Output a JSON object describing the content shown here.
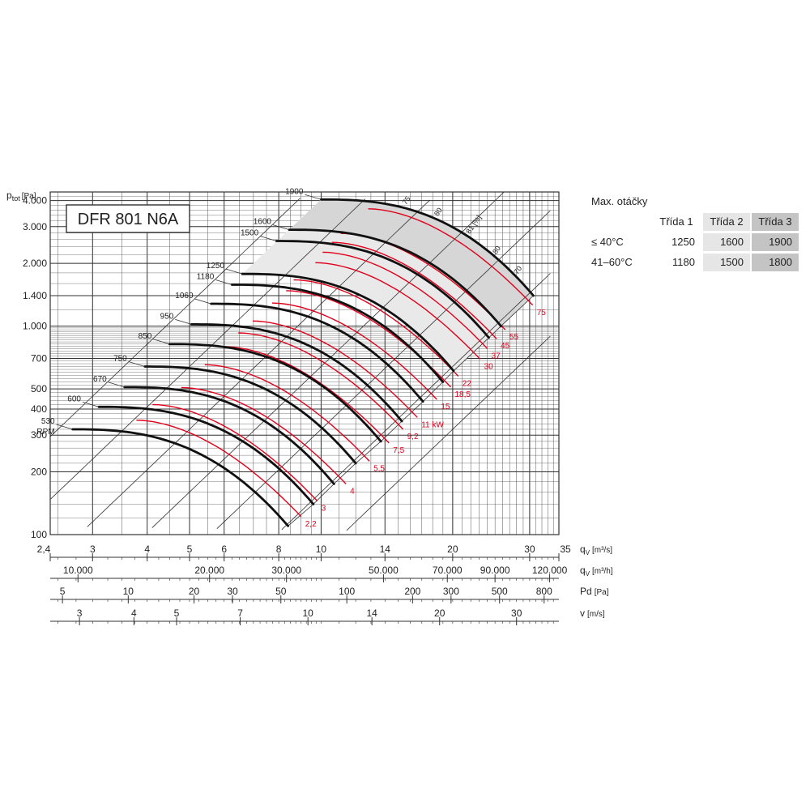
{
  "chart_data": {
    "type": "line",
    "title": "DFR 801  N6A",
    "ylabel_main": "p",
    "ylabel_sub": "tot",
    "ylabel_unit": "[Pa]",
    "y_scale": "log",
    "ylim": [
      100,
      4400
    ],
    "y_ticks": [
      {
        "v": 100,
        "label": "100"
      },
      {
        "v": 200,
        "label": "200"
      },
      {
        "v": 300,
        "label": "300"
      },
      {
        "v": 400,
        "label": "400"
      },
      {
        "v": 500,
        "label": "500"
      },
      {
        "v": 700,
        "label": "700"
      },
      {
        "v": 1000,
        "label": "1.000"
      },
      {
        "v": 1400,
        "label": "1.400"
      },
      {
        "v": 2000,
        "label": "2.000"
      },
      {
        "v": 3000,
        "label": "3.000"
      },
      {
        "v": 4000,
        "label": "4.000"
      }
    ],
    "x_scale": "log",
    "xlim": [
      2.4,
      35
    ],
    "x_axes": [
      {
        "name": "q",
        "sub": "V",
        "unit": "[m³/s]",
        "ticks": [
          {
            "v": 2.4,
            "label": "2,4"
          },
          {
            "v": 3,
            "label": "3"
          },
          {
            "v": 4,
            "label": "4"
          },
          {
            "v": 5,
            "label": "5"
          },
          {
            "v": 6,
            "label": "6"
          },
          {
            "v": 8,
            "label": "8"
          },
          {
            "v": 10,
            "label": "10"
          },
          {
            "v": 14,
            "label": "14"
          },
          {
            "v": 20,
            "label": "20"
          },
          {
            "v": 30,
            "label": "30"
          },
          {
            "v": 35,
            "label": "35"
          }
        ]
      },
      {
        "name": "q",
        "sub": "V",
        "unit": "[m³/h]",
        "ticks": [
          {
            "v": 2.778,
            "label": "10.000"
          },
          {
            "v": 5.556,
            "label": "20.000"
          },
          {
            "v": 8.333,
            "label": "30.000"
          },
          {
            "v": 13.889,
            "label": "50.000"
          },
          {
            "v": 19.444,
            "label": "70.000"
          },
          {
            "v": 25.0,
            "label": "90.000"
          },
          {
            "v": 33.333,
            "label": "120.000"
          }
        ]
      },
      {
        "name": "Pd",
        "sub": "",
        "unit": "[Pa]",
        "ticks": [
          {
            "v": 2.56,
            "label": "5"
          },
          {
            "v": 3.62,
            "label": "10"
          },
          {
            "v": 5.12,
            "label": "20"
          },
          {
            "v": 6.27,
            "label": "30"
          },
          {
            "v": 8.09,
            "label": "50"
          },
          {
            "v": 11.45,
            "label": "100"
          },
          {
            "v": 16.19,
            "label": "200"
          },
          {
            "v": 19.83,
            "label": "300"
          },
          {
            "v": 25.6,
            "label": "500"
          },
          {
            "v": 32.38,
            "label": "800"
          }
        ]
      },
      {
        "name": "v",
        "sub": "",
        "unit": "[m/s]",
        "ticks": [
          {
            "v": 2.8,
            "label": "3"
          },
          {
            "v": 3.73,
            "label": "4"
          },
          {
            "v": 4.67,
            "label": "5"
          },
          {
            "v": 6.53,
            "label": "7"
          },
          {
            "v": 9.33,
            "label": "10"
          },
          {
            "v": 13.07,
            "label": "14"
          },
          {
            "v": 18.67,
            "label": "20"
          },
          {
            "v": 28.0,
            "label": "30"
          }
        ]
      }
    ],
    "speed_curves": [
      {
        "rpm": "530",
        "unit": "RPM",
        "q_start": 2.7,
        "p_start": 320,
        "q_end": 8.4,
        "p_end": 110
      },
      {
        "rpm": "600",
        "q_start": 3.1,
        "p_start": 410,
        "q_end": 9.6,
        "p_end": 140
      },
      {
        "rpm": "670",
        "q_start": 3.55,
        "p_start": 510,
        "q_end": 10.7,
        "p_end": 175
      },
      {
        "rpm": "750",
        "q_start": 3.95,
        "p_start": 640,
        "q_end": 12.0,
        "p_end": 220
      },
      {
        "rpm": "850",
        "q_start": 4.5,
        "p_start": 820,
        "q_end": 13.7,
        "p_end": 280
      },
      {
        "rpm": "950",
        "q_start": 5.05,
        "p_start": 1020,
        "q_end": 15.3,
        "p_end": 350
      },
      {
        "rpm": "1060",
        "q_start": 5.6,
        "p_start": 1280,
        "q_end": 17.1,
        "p_end": 435
      },
      {
        "rpm": "1180",
        "q_start": 6.25,
        "p_start": 1580,
        "q_end": 19.0,
        "p_end": 540
      },
      {
        "rpm": "1250",
        "q_start": 6.6,
        "p_start": 1780,
        "q_end": 20.1,
        "p_end": 610
      },
      {
        "rpm": "1500",
        "q_start": 7.9,
        "p_start": 2560,
        "q_end": 24.2,
        "p_end": 880
      },
      {
        "rpm": "1600",
        "q_start": 8.45,
        "p_start": 2900,
        "q_end": 25.8,
        "p_end": 1000
      },
      {
        "rpm": "1900",
        "q_start": 10.0,
        "p_start": 4050,
        "q_end": 30.6,
        "p_end": 1400
      }
    ],
    "power_lines": [
      {
        "label": "2,2",
        "q": 9.0,
        "p": 122
      },
      {
        "label": "3",
        "q": 9.8,
        "p": 145
      },
      {
        "label": "4",
        "q": 11.4,
        "p": 175
      },
      {
        "label": "5,5",
        "q": 12.9,
        "p": 225
      },
      {
        "label": "7,5",
        "q": 14.3,
        "p": 275
      },
      {
        "label": "9,2",
        "q": 15.4,
        "p": 320
      },
      {
        "label": "11 kW",
        "q": 16.6,
        "p": 365
      },
      {
        "label": "15",
        "q": 18.4,
        "p": 445
      },
      {
        "label": "18,5",
        "q": 19.8,
        "p": 510
      },
      {
        "label": "22",
        "q": 20.6,
        "p": 575
      },
      {
        "label": "30",
        "q": 23.1,
        "p": 695
      },
      {
        "label": "37",
        "q": 24.0,
        "p": 780
      },
      {
        "label": "45",
        "q": 25.2,
        "p": 870
      },
      {
        "label": "55",
        "q": 26.4,
        "p": 960
      },
      {
        "label": "75",
        "q": 30.5,
        "p": 1260
      }
    ],
    "efficiency_labels": [
      "75",
      "80",
      "81 [%]",
      "80",
      "70"
    ],
    "max_speed_table": {
      "title": "Max. otáčky",
      "headers": [
        "Třída 1",
        "Třída 2",
        "Třída 3"
      ],
      "rows": [
        {
          "label": "≤ 40°C",
          "values": [
            "1250",
            "1600",
            "1900"
          ]
        },
        {
          "label": "41–60°C",
          "values": [
            "1180",
            "1500",
            "1800"
          ]
        }
      ]
    }
  },
  "colors": {
    "curve": "#111111",
    "power": "#e0001b",
    "grid": "#555555",
    "shade": "#d6d6d6",
    "class2": "#e6e6e6",
    "class3": "#c4c4c4"
  }
}
